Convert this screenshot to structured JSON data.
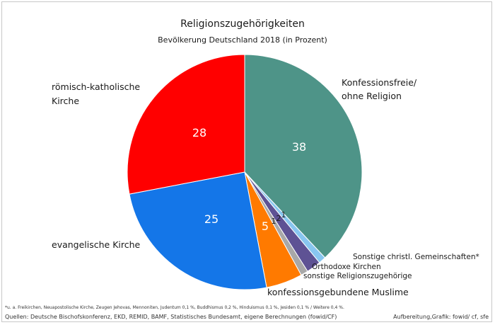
{
  "chart_data": {
    "type": "pie",
    "title": "Religionszugehörigkeiten",
    "subtitle": "Bevölkerung Deutschland 2018 (in Prozent)",
    "slices": [
      {
        "label": "Konfessionsfreie/ ohne Religion",
        "value": 38,
        "color": "#4e9488"
      },
      {
        "label": "Sonstige christl. Gemeinschaften*",
        "value": 1,
        "color": "#88c6f0"
      },
      {
        "label": "Orthodoxe Kirchen",
        "value": 2,
        "color": "#5e5294"
      },
      {
        "label": "sonstige Religionszugehörige",
        "value": 1,
        "color": "#a8a8a8"
      },
      {
        "label": "konfessionsgebundene Muslime",
        "value": 5,
        "color": "#ff7a00"
      },
      {
        "label": "evangelische Kirche",
        "value": 25,
        "color": "#1476e8"
      },
      {
        "label": "römisch-katholische Kirche",
        "value": 28,
        "color": "#ff0000"
      }
    ]
  },
  "footnote": "*u. a. Freikirchen, Neuapostolische Kirche, Zeugen Jehovas, Mennoniten, Judentum 0,1 %, Buddhismus 0,2 %, Hinduismus 0,1 %, Jesiden 0,1 % / Weitere 0,4 %.",
  "sources": "Quellen: Deutsche Bischofskonferenz, EKD, REMID, BAMF, Statistisches Bundesamt, eigene Berechnungen (fowid/CF)",
  "credit": "Aufbereitung,Grafik: fowid/ cf, sfe"
}
